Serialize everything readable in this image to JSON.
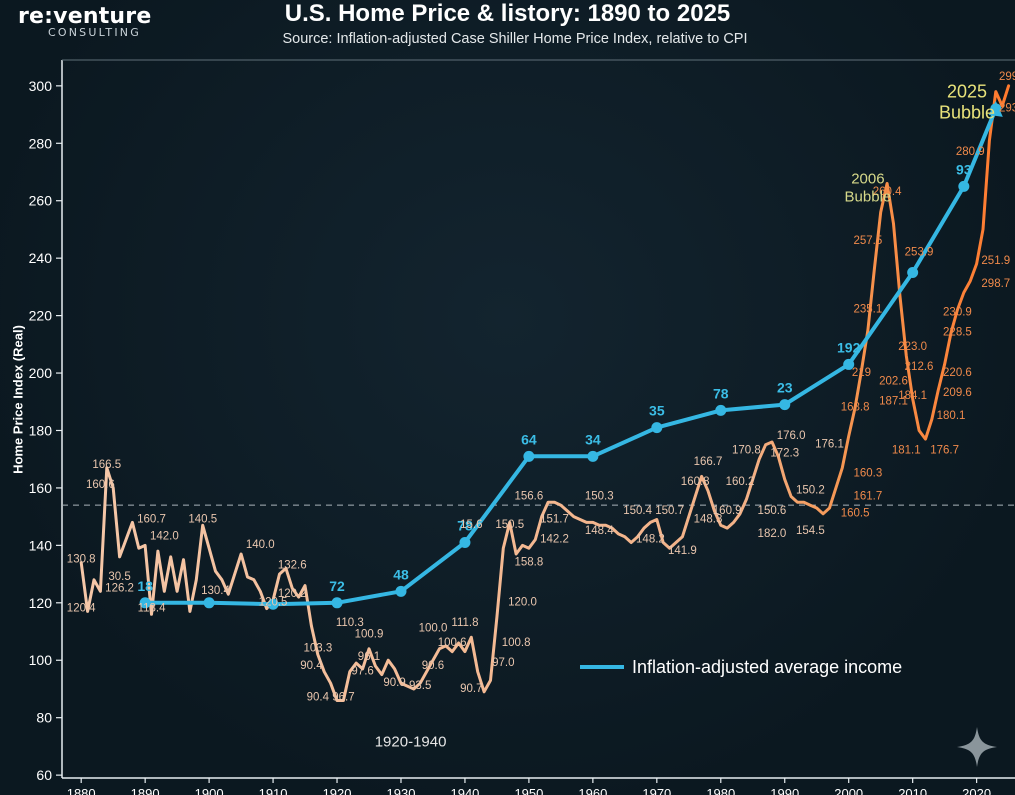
{
  "header": {
    "logo_main": "re:venture",
    "logo_sub": "CONSULTING"
  },
  "chart_data": {
    "type": "line",
    "title": "U.S. Home Price & listory: 1890 to 2025",
    "subtitle": "Source: Inflation-adjusted Case Shiller Home Price Index, relative to CPI",
    "ylabel": "Home Price Index (Real)",
    "xlabel": "",
    "xlim": [
      1877,
      2026
    ],
    "ylim": [
      59,
      309
    ],
    "x_ticks": [
      1880,
      1890,
      1900,
      1910,
      1920,
      1930,
      1940,
      1950,
      1960,
      1970,
      1980,
      1990,
      2000,
      2010,
      2020
    ],
    "y_ticks": [
      60,
      80,
      100,
      120,
      140,
      160,
      180,
      200,
      220,
      240,
      260,
      280,
      300
    ],
    "grid": false,
    "reference_line": 154,
    "legend": {
      "position": "center-right",
      "entries": [
        "Inflation-adjusted average income"
      ]
    },
    "series": [
      {
        "name": "Inflation-adjusted average income",
        "color": "#35b7e3",
        "x": [
          1890,
          1900,
          1910,
          1920,
          1930,
          1940,
          1950,
          1960,
          1970,
          1980,
          1990,
          2000,
          2010,
          2018,
          2023
        ],
        "y": [
          120,
          120,
          119.5,
          120,
          124,
          141,
          171,
          171,
          181,
          187,
          189,
          203,
          235,
          265,
          292
        ],
        "point_labels": [
          "18",
          "",
          "",
          "72",
          "48",
          "78",
          "64",
          "34",
          "35",
          "78",
          "23",
          "192",
          "",
          "93",
          ""
        ]
      },
      {
        "name": "Home Price Index",
        "color": "#f2a070",
        "color_end": "#ff7a2e",
        "x": [
          1880,
          1881,
          1882,
          1883,
          1884,
          1885,
          1886,
          1887,
          1888,
          1889,
          1890,
          1891,
          1892,
          1893,
          1894,
          1895,
          1896,
          1897,
          1898,
          1899,
          1900,
          1901,
          1902,
          1903,
          1904,
          1905,
          1906,
          1907,
          1908,
          1909,
          1910,
          1911,
          1912,
          1913,
          1914,
          1915,
          1916,
          1917,
          1918,
          1919,
          1920,
          1921,
          1922,
          1923,
          1924,
          1925,
          1926,
          1927,
          1928,
          1929,
          1930,
          1931,
          1932,
          1933,
          1934,
          1935,
          1936,
          1937,
          1938,
          1939,
          1940,
          1941,
          1942,
          1943,
          1944,
          1945,
          1946,
          1947,
          1948,
          1949,
          1950,
          1951,
          1952,
          1953,
          1954,
          1955,
          1956,
          1957,
          1958,
          1959,
          1960,
          1961,
          1962,
          1963,
          1964,
          1965,
          1966,
          1967,
          1968,
          1969,
          1970,
          1971,
          1972,
          1973,
          1974,
          1975,
          1976,
          1977,
          1978,
          1979,
          1980,
          1981,
          1982,
          1983,
          1984,
          1985,
          1986,
          1987,
          1988,
          1989,
          1990,
          1991,
          1992,
          1993,
          1994,
          1995,
          1996,
          1997,
          1998,
          1999,
          2000,
          2001,
          2002,
          2003,
          2004,
          2005,
          2006,
          2007,
          2008,
          2009,
          2010,
          2011,
          2012,
          2013,
          2014,
          2015,
          2016,
          2017,
          2018,
          2019,
          2020,
          2021,
          2022,
          2023,
          2024,
          2025
        ],
        "y": [
          134,
          117,
          128,
          124,
          167,
          160,
          136,
          142,
          148,
          139,
          140,
          116,
          138,
          124,
          136,
          124,
          135,
          117,
          128,
          147,
          139,
          131,
          128,
          123,
          130,
          137,
          129,
          128,
          124,
          118,
          121,
          130,
          132,
          125,
          122,
          126,
          112,
          102,
          96,
          92,
          86,
          86,
          96,
          99,
          97,
          104,
          98,
          95,
          100,
          97,
          92,
          91,
          90,
          92,
          96,
          100,
          104,
          105,
          103,
          106,
          103,
          108,
          96,
          89,
          93,
          115,
          139,
          148,
          137,
          140,
          139,
          142,
          150,
          155,
          155,
          154,
          152,
          150,
          149,
          148,
          148,
          147,
          147,
          146,
          144,
          143,
          141,
          143,
          146,
          148,
          149,
          141,
          139,
          141,
          143,
          150,
          157,
          164,
          159,
          152,
          147,
          146,
          148,
          151,
          156,
          163,
          170,
          175,
          176,
          171,
          163,
          157,
          155,
          155,
          154,
          153,
          151,
          153,
          160,
          167,
          178,
          188,
          201,
          215,
          236,
          256,
          266,
          252,
          227,
          206,
          191,
          180,
          177,
          184,
          194,
          203,
          214,
          222,
          228,
          232,
          238,
          250,
          281,
          298,
          293,
          300
        ],
        "point_labels": [
          {
            "x": 1880,
            "y": 134,
            "t": "130.8"
          },
          {
            "x": 1880,
            "y": 117,
            "t": "120.4"
          },
          {
            "x": 1884,
            "y": 167,
            "t": "166.5"
          },
          {
            "x": 1883,
            "y": 160,
            "t": "160.6"
          },
          {
            "x": 1886,
            "y": 128,
            "t": "30.5"
          },
          {
            "x": 1886,
            "y": 124,
            "t": "126.2"
          },
          {
            "x": 1891,
            "y": 148,
            "t": "160.7"
          },
          {
            "x": 1893,
            "y": 142,
            "t": "142.0"
          },
          {
            "x": 1891,
            "y": 117,
            "t": "118.4"
          },
          {
            "x": 1899,
            "y": 148,
            "t": "140.5"
          },
          {
            "x": 1901,
            "y": 123,
            "t": "130.4"
          },
          {
            "x": 1908,
            "y": 139,
            "t": "140.0"
          },
          {
            "x": 1913,
            "y": 132,
            "t": "132.6"
          },
          {
            "x": 1913,
            "y": 122,
            "t": "120.2"
          },
          {
            "x": 1910,
            "y": 119,
            "t": "120.5"
          },
          {
            "x": 1922,
            "y": 112,
            "t": "110.3"
          },
          {
            "x": 1917,
            "y": 103,
            "t": "103.3"
          },
          {
            "x": 1916,
            "y": 97,
            "t": "90.4"
          },
          {
            "x": 1917,
            "y": 86,
            "t": "90.4"
          },
          {
            "x": 1921,
            "y": 86,
            "t": "96.7"
          },
          {
            "x": 1925,
            "y": 108,
            "t": "100.9"
          },
          {
            "x": 1925,
            "y": 100,
            "t": "96.1"
          },
          {
            "x": 1924,
            "y": 95,
            "t": "97.6"
          },
          {
            "x": 1929,
            "y": 91,
            "t": "90.9"
          },
          {
            "x": 1933,
            "y": 90,
            "t": "93.5"
          },
          {
            "x": 1935,
            "y": 110,
            "t": "100.0"
          },
          {
            "x": 1938,
            "y": 105,
            "t": "100.6"
          },
          {
            "x": 1935,
            "y": 97,
            "t": "90.6"
          },
          {
            "x": 1940,
            "y": 112,
            "t": "111.8"
          },
          {
            "x": 1941,
            "y": 89,
            "t": "90.7"
          },
          {
            "x": 1946,
            "y": 98,
            "t": "97.0"
          },
          {
            "x": 1948,
            "y": 105,
            "t": "100.8"
          },
          {
            "x": 1949,
            "y": 119,
            "t": "120.0"
          },
          {
            "x": 1950,
            "y": 133,
            "t": "158.8"
          },
          {
            "x": 1941,
            "y": 146,
            "t": "15.6"
          },
          {
            "x": 1947,
            "y": 146,
            "t": "150.5"
          },
          {
            "x": 1950,
            "y": 156,
            "t": "156.6"
          },
          {
            "x": 1954,
            "y": 148,
            "t": "151.7"
          },
          {
            "x": 1954,
            "y": 141,
            "t": "142.2"
          },
          {
            "x": 1961,
            "y": 156,
            "t": "150.3"
          },
          {
            "x": 1961,
            "y": 144,
            "t": "148.4"
          },
          {
            "x": 1967,
            "y": 151,
            "t": "150.4"
          },
          {
            "x": 1972,
            "y": 151,
            "t": "150.7"
          },
          {
            "x": 1969,
            "y": 141,
            "t": "148.2"
          },
          {
            "x": 1978,
            "y": 168,
            "t": "166.7"
          },
          {
            "x": 1976,
            "y": 161,
            "t": "160.8"
          },
          {
            "x": 1983,
            "y": 161,
            "t": "160.2"
          },
          {
            "x": 1981,
            "y": 151,
            "t": "160.9"
          },
          {
            "x": 1978,
            "y": 148,
            "t": "148.3"
          },
          {
            "x": 1974,
            "y": 137,
            "t": "141.9"
          },
          {
            "x": 1984,
            "y": 172,
            "t": "170.8"
          },
          {
            "x": 1988,
            "y": 143,
            "t": "182.0"
          },
          {
            "x": 1991,
            "y": 177,
            "t": "176.0"
          },
          {
            "x": 1990,
            "y": 171,
            "t": "172.3"
          },
          {
            "x": 1988,
            "y": 151,
            "t": "150.6"
          },
          {
            "x": 1994,
            "y": 158,
            "t": "150.2"
          },
          {
            "x": 1994,
            "y": 144,
            "t": "154.5"
          },
          {
            "x": 1997,
            "y": 174,
            "t": "176.1"
          },
          {
            "x": 2001,
            "y": 187,
            "t": "168.8"
          },
          {
            "x": 2002,
            "y": 199,
            "t": "219"
          },
          {
            "x": 2003,
            "y": 164,
            "t": "160.3"
          },
          {
            "x": 2003,
            "y": 156,
            "t": "161.7"
          },
          {
            "x": 2001,
            "y": 150,
            "t": "160.5"
          },
          {
            "x": 2003,
            "y": 221,
            "t": "235.1"
          },
          {
            "x": 2003,
            "y": 245,
            "t": "257.5"
          },
          {
            "x": 2007,
            "y": 189,
            "t": "187.1"
          },
          {
            "x": 2007,
            "y": 196,
            "t": "202.6"
          },
          {
            "x": 2006,
            "y": 262,
            "t": "260.4"
          },
          {
            "x": 2011,
            "y": 241,
            "t": "253.9"
          },
          {
            "x": 2010,
            "y": 208,
            "t": "223.0"
          },
          {
            "x": 2011,
            "y": 201,
            "t": "212.6"
          },
          {
            "x": 2010,
            "y": 191,
            "t": "184.1"
          },
          {
            "x": 2009,
            "y": 172,
            "t": "181.1"
          },
          {
            "x": 2015,
            "y": 172,
            "t": "176.7"
          },
          {
            "x": 2017,
            "y": 220,
            "t": "230.9"
          },
          {
            "x": 2017,
            "y": 213,
            "t": "228.5"
          },
          {
            "x": 2017,
            "y": 199,
            "t": "220.6"
          },
          {
            "x": 2017,
            "y": 192,
            "t": "209.6"
          },
          {
            "x": 2016,
            "y": 184,
            "t": "180.1"
          },
          {
            "x": 2023,
            "y": 238,
            "t": "251.9"
          },
          {
            "x": 2023,
            "y": 230,
            "t": "298.7"
          },
          {
            "x": 2019,
            "y": 276,
            "t": "280.9"
          },
          {
            "x": 2025,
            "y": 302,
            "t": "299"
          },
          {
            "x": 2025,
            "y": 291,
            "t": "293"
          }
        ]
      }
    ],
    "annotations": [
      {
        "text": "2006\nBubble",
        "x": 2003,
        "y": 266,
        "color": "#d6d98a"
      },
      {
        "text": "2025\nBubble",
        "x": 2018.5,
        "y": 296,
        "color": "#e8e27a"
      },
      {
        "text": "1920-1940",
        "x": 1931.5,
        "y": 70,
        "color": "#e6e6e6"
      }
    ]
  }
}
